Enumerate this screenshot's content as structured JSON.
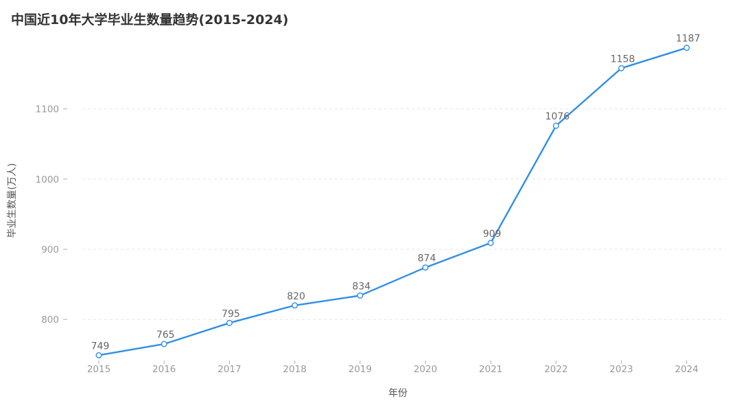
{
  "title": "中国近10年大学毕业生数量趋势(2015-2024)",
  "colors": {
    "line": "#2f8ee6",
    "grid": "#e6e6e6",
    "tick_text": "#999999",
    "point_fill": "#ffffff"
  },
  "chart_data": {
    "type": "line",
    "title": "中国近10年大学毕业生数量趋势(2015-2024)",
    "xlabel": "年份",
    "ylabel": "毕业生数量(万人)",
    "categories": [
      "2015",
      "2016",
      "2017",
      "2018",
      "2019",
      "2020",
      "2021",
      "2022",
      "2023",
      "2024"
    ],
    "series": [
      {
        "values": [
          749,
          765,
          795,
          820,
          834,
          874,
          909,
          1076,
          1158,
          1187
        ]
      }
    ],
    "ylim": [
      730,
      1210
    ],
    "yticks": [
      800,
      900,
      1000,
      1100
    ],
    "grid": true,
    "data_labels": true
  }
}
